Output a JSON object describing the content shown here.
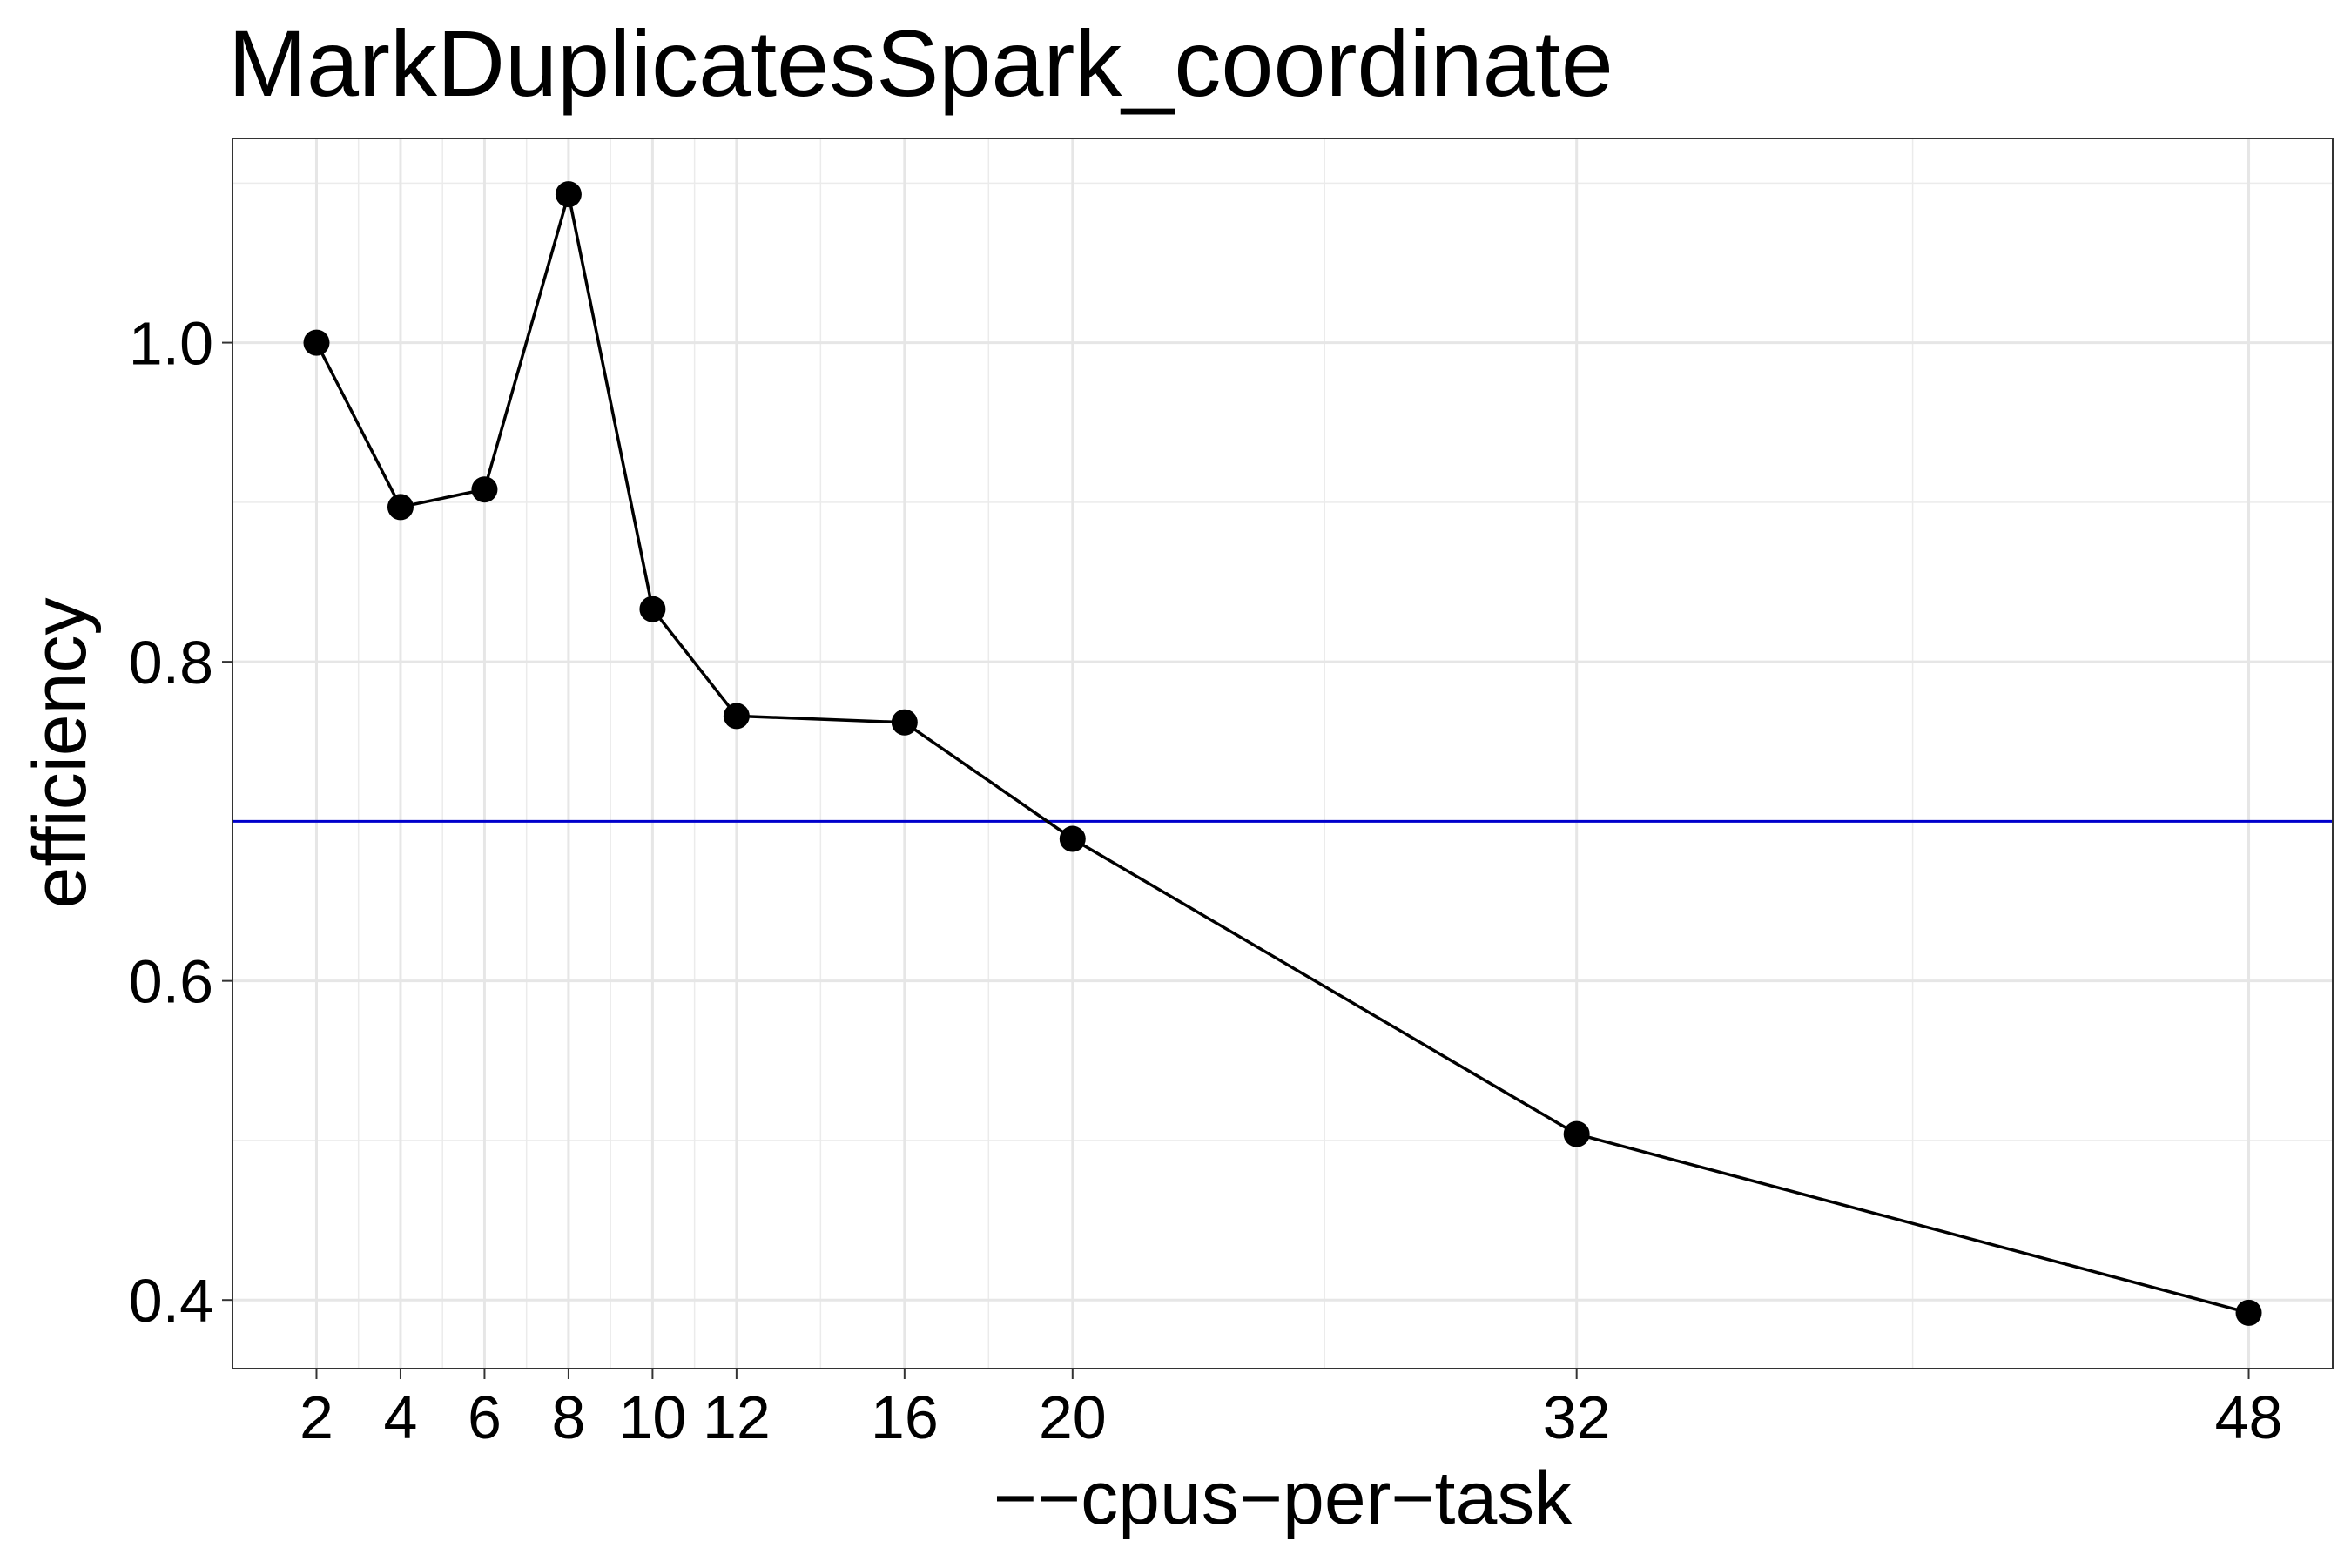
{
  "chart_data": {
    "type": "line",
    "title": "MarkDuplicatesSpark_coordinate",
    "xlabel": "−−cpus−per−task",
    "ylabel": "efficiency",
    "xlim": [
      0.0,
      50.0
    ],
    "ylim": [
      0.357,
      1.128
    ],
    "x_ticks": [
      2,
      4,
      6,
      8,
      10,
      12,
      16,
      20,
      32,
      48
    ],
    "x_tick_labels": [
      "2",
      "4",
      "6",
      "8",
      "10",
      "12",
      "16",
      "20",
      "32",
      "48"
    ],
    "x_minor_grid": [
      3,
      5,
      7,
      9,
      11,
      14,
      18,
      26,
      40
    ],
    "y_ticks": [
      0.4,
      0.6,
      0.8,
      1.0
    ],
    "y_tick_labels": [
      "0.4",
      "0.6",
      "0.8",
      "1.0"
    ],
    "y_minor_grid": [
      0.5,
      0.7,
      0.9,
      1.1
    ],
    "grid": true,
    "series": [
      {
        "x": [
          2,
          4,
          6,
          8,
          10,
          12,
          16,
          20,
          32,
          48
        ],
        "values": [
          1.0,
          0.897,
          0.908,
          1.093,
          0.833,
          0.766,
          0.762,
          0.689,
          0.504,
          0.392
        ],
        "color": "#000000"
      }
    ],
    "hline": {
      "y": 0.7,
      "color": "#0000cc"
    }
  }
}
